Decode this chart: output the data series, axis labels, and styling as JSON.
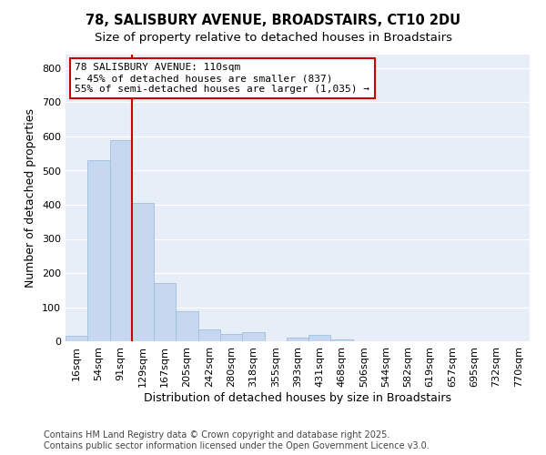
{
  "title_line1": "78, SALISBURY AVENUE, BROADSTAIRS, CT10 2DU",
  "title_line2": "Size of property relative to detached houses in Broadstairs",
  "xlabel": "Distribution of detached houses by size in Broadstairs",
  "ylabel": "Number of detached properties",
  "bar_color": "#c5d8f0",
  "bar_edge_color": "#a0bfde",
  "categories": [
    "16sqm",
    "54sqm",
    "91sqm",
    "129sqm",
    "167sqm",
    "205sqm",
    "242sqm",
    "280sqm",
    "318sqm",
    "355sqm",
    "393sqm",
    "431sqm",
    "468sqm",
    "506sqm",
    "544sqm",
    "582sqm",
    "619sqm",
    "657sqm",
    "695sqm",
    "732sqm",
    "770sqm"
  ],
  "values": [
    15,
    530,
    590,
    405,
    170,
    88,
    35,
    22,
    28,
    0,
    12,
    18,
    5,
    0,
    0,
    0,
    0,
    0,
    0,
    0,
    0
  ],
  "ylim": [
    0,
    840
  ],
  "yticks": [
    0,
    100,
    200,
    300,
    400,
    500,
    600,
    700,
    800
  ],
  "property_line_x": 2.5,
  "annotation_text": "78 SALISBURY AVENUE: 110sqm\n← 45% of detached houses are smaller (837)\n55% of semi-detached houses are larger (1,035) →",
  "annotation_box_color": "#ffffff",
  "annotation_box_edge_color": "#cc0000",
  "red_line_color": "#cc0000",
  "plot_bg_color": "#e8eef8",
  "grid_color": "#ffffff",
  "footer_line1": "Contains HM Land Registry data © Crown copyright and database right 2025.",
  "footer_line2": "Contains public sector information licensed under the Open Government Licence v3.0.",
  "title_fontsize": 10.5,
  "subtitle_fontsize": 9.5,
  "axis_label_fontsize": 9,
  "tick_fontsize": 8,
  "annotation_fontsize": 8,
  "footer_fontsize": 7
}
